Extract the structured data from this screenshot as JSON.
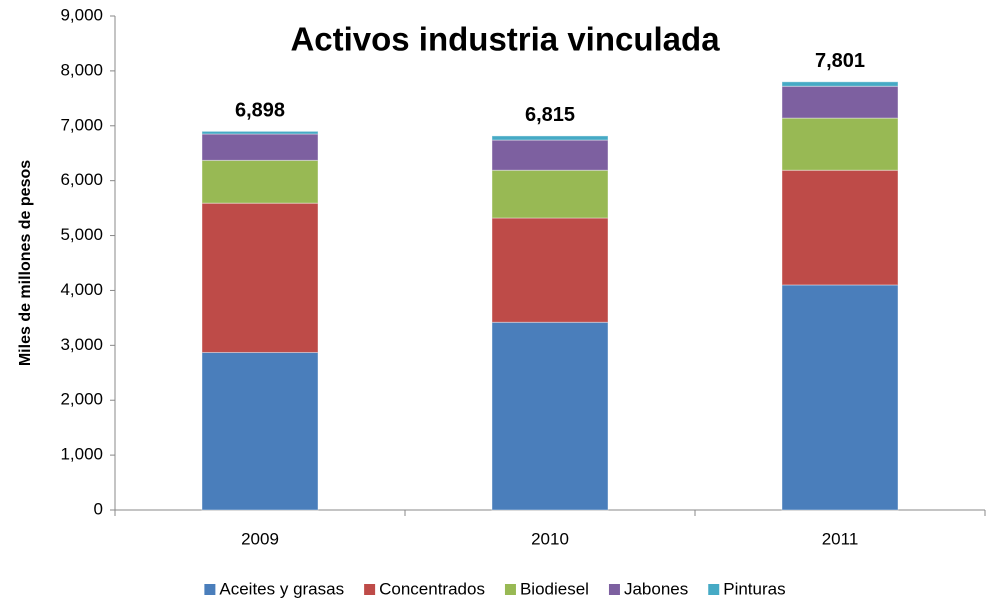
{
  "chart_data": {
    "type": "stacked_bar",
    "title": "Activos industria vinculada",
    "y_label": "Miles de millones de pesos",
    "categories": [
      "2009",
      "2010",
      "2011"
    ],
    "series": [
      {
        "name": "Aceites y grasas",
        "color": "#4a7ebb",
        "values": [
          2870,
          3420,
          4100
        ]
      },
      {
        "name": "Concentrados",
        "color": "#be4b48",
        "values": [
          2720,
          1900,
          2090
        ]
      },
      {
        "name": "Biodiesel",
        "color": "#98b954",
        "values": [
          780,
          870,
          950
        ]
      },
      {
        "name": "Jabones",
        "color": "#7d60a0",
        "values": [
          480,
          550,
          580
        ]
      },
      {
        "name": "Pinturas",
        "color": "#46aac5",
        "values": [
          48,
          75,
          81
        ]
      }
    ],
    "totals": {
      "values": [
        6898,
        6815,
        7801
      ],
      "value_labels": [
        "6,898",
        "6,815",
        "7,801"
      ]
    },
    "ylim": [
      0,
      9000
    ],
    "yticks": [
      0,
      {
        "value": 1000,
        "label": "1,000"
      },
      {
        "value": 2000,
        "label": "2,000"
      },
      {
        "value": 3000,
        "label": "3,000"
      },
      {
        "value": 4000,
        "label": "4,000"
      },
      {
        "value": 5000,
        "label": "5,000"
      },
      {
        "value": 6000,
        "label": "6,000"
      },
      {
        "value": 7000,
        "label": "7,000"
      },
      {
        "value": 8000,
        "label": "8,000"
      },
      {
        "value": 9000,
        "label": "9,000"
      }
    ],
    "legend": "bottom"
  }
}
